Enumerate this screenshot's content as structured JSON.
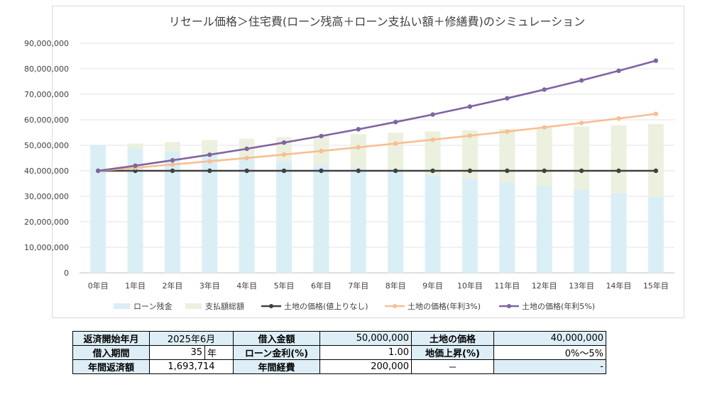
{
  "chart_data": {
    "type": "bar",
    "title": "リセール価格＞住宅費(ローン残高＋ローン支払い額＋修繕費)のシミュレーション",
    "categories": [
      "0年目",
      "1年目",
      "2年目",
      "3年目",
      "4年目",
      "5年目",
      "6年目",
      "7年目",
      "8年目",
      "9年目",
      "10年目",
      "11年目",
      "12年目",
      "13年目",
      "14年目",
      "15年目"
    ],
    "y_ticks": [
      "0",
      "10,000,000",
      "20,000,000",
      "30,000,000",
      "40,000,000",
      "50,000,000",
      "60,000,000",
      "70,000,000",
      "80,000,000",
      "90,000,000"
    ],
    "ylim": [
      0,
      90000000
    ],
    "grid": true,
    "legend_position": "bottom",
    "stacked_series": [
      {
        "name": "ローン残金",
        "color": "#daeef6",
        "values": [
          50000000,
          48800000,
          47500000,
          46300000,
          45000000,
          43700000,
          42400000,
          41000000,
          39700000,
          38300000,
          36900000,
          35500000,
          34100000,
          32700000,
          31200000,
          29800000
        ]
      },
      {
        "name": "支払額総額",
        "color": "#ebf1de",
        "values": [
          0,
          1900000,
          3800000,
          5700000,
          7600000,
          9500000,
          11400000,
          13300000,
          15200000,
          17100000,
          19000000,
          20900000,
          22800000,
          24700000,
          26600000,
          28500000
        ]
      }
    ],
    "line_series": [
      {
        "name": "土地の価格(値上りなし)",
        "color": "#404040",
        "values": [
          40000000,
          40000000,
          40000000,
          40000000,
          40000000,
          40000000,
          40000000,
          40000000,
          40000000,
          40000000,
          40000000,
          40000000,
          40000000,
          40000000,
          40000000,
          40000000
        ]
      },
      {
        "name": "土地の価格(年利3%)",
        "color": "#f8bf91",
        "values": [
          40000000,
          41200000,
          42436000,
          43709080,
          45020352,
          46370963,
          47762092,
          49194955,
          50670803,
          52190927,
          53756655,
          55369354,
          57030435,
          58741348,
          60503588,
          62318696
        ]
      },
      {
        "name": "土地の価格(年利5%)",
        "color": "#8064a2",
        "values": [
          40000000,
          42000000,
          44100000,
          46305000,
          48620250,
          51051263,
          53603826,
          56284017,
          59098218,
          62053129,
          65155785,
          68413574,
          71834253,
          75425966,
          79197264,
          83157127
        ]
      }
    ]
  },
  "table": {
    "rows": [
      [
        "返済開始年月",
        "2025年6月",
        "借入金額",
        "50,000,000",
        "土地の価格",
        "40,000,000"
      ],
      [
        "借入期間",
        "35",
        "年",
        "ローン金利(%)",
        "1.00",
        "地価上昇(%)",
        "0%～5%"
      ],
      [
        "年間返済額",
        "1,693,714",
        "年間経費",
        "200,000",
        "－",
        "-"
      ]
    ]
  }
}
